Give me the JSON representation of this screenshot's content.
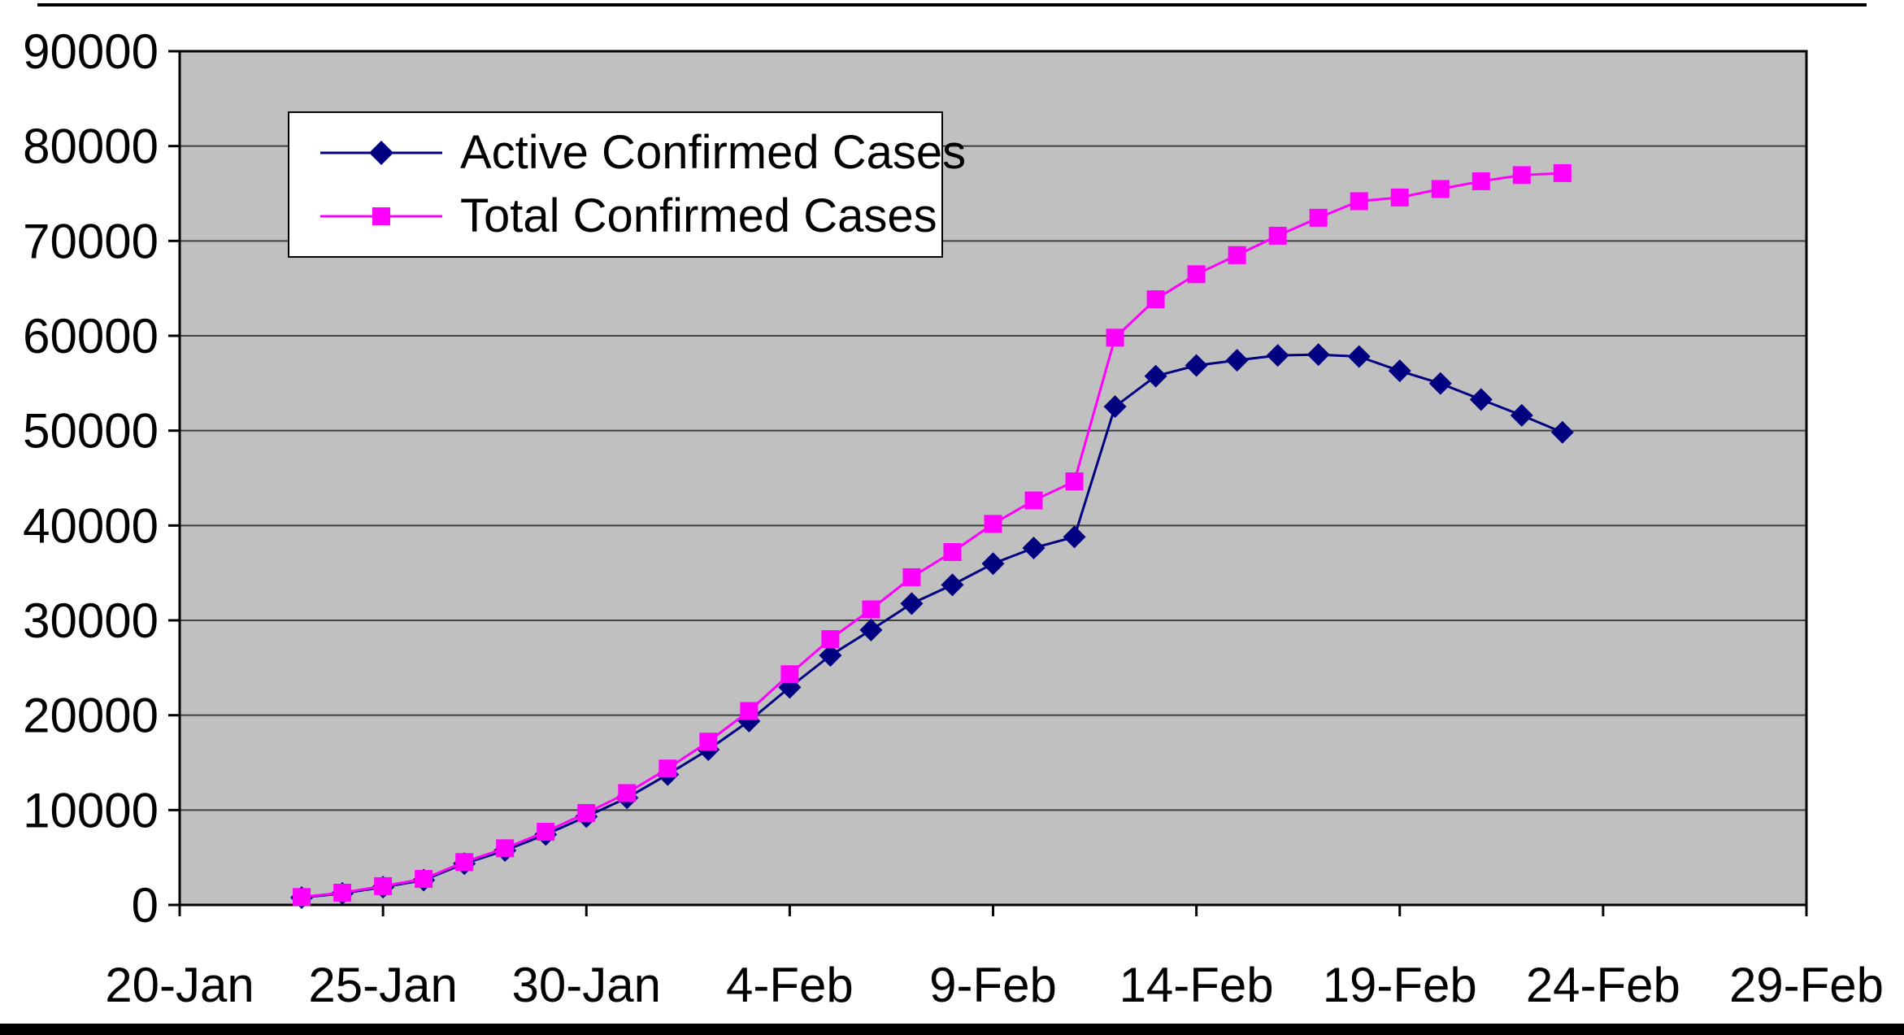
{
  "page": {
    "background": "#ffffff"
  },
  "chart_data": {
    "type": "line",
    "title": "",
    "plot_background": "#c0c0c0",
    "grid": "horizontal",
    "legend_position": "top-left-inside",
    "x_axis": {
      "tick_labels": [
        "20-Jan",
        "25-Jan",
        "30-Jan",
        "4-Feb",
        "9-Feb",
        "14-Feb",
        "19-Feb",
        "24-Feb",
        "29-Feb"
      ],
      "tick_days": [
        0,
        5,
        10,
        15,
        20,
        25,
        30,
        35,
        40
      ],
      "range_days": [
        0,
        40
      ]
    },
    "y_axis": {
      "min": 0,
      "max": 90000,
      "step": 10000,
      "tick_labels": [
        "0",
        "10000",
        "20000",
        "30000",
        "40000",
        "50000",
        "60000",
        "70000",
        "80000",
        "90000"
      ]
    },
    "dates": [
      "23-Jan",
      "24-Jan",
      "25-Jan",
      "26-Jan",
      "27-Jan",
      "28-Jan",
      "29-Jan",
      "30-Jan",
      "31-Jan",
      "1-Feb",
      "2-Feb",
      "3-Feb",
      "4-Feb",
      "5-Feb",
      "6-Feb",
      "7-Feb",
      "8-Feb",
      "9-Feb",
      "10-Feb",
      "11-Feb",
      "12-Feb",
      "13-Feb",
      "14-Feb",
      "15-Feb",
      "16-Feb",
      "17-Feb",
      "18-Feb",
      "19-Feb",
      "20-Feb",
      "21-Feb",
      "22-Feb",
      "23-Feb"
    ],
    "day_offsets": [
      3,
      4,
      5,
      6,
      7,
      8,
      9,
      10,
      11,
      12,
      13,
      14,
      15,
      16,
      17,
      18,
      19,
      20,
      21,
      22,
      23,
      24,
      25,
      26,
      27,
      28,
      29,
      30,
      31,
      32,
      33,
      34
    ],
    "series": [
      {
        "name": "Active Confirmed Cases",
        "color": "#000080",
        "marker": "diamond",
        "values": [
          770,
          1210,
          1870,
          2610,
          4350,
          5740,
          7420,
          9310,
          11290,
          13750,
          16370,
          19380,
          22940,
          26300,
          28980,
          31770,
          33740,
          35980,
          37630,
          38800,
          52530,
          55750,
          56870,
          57420,
          57930,
          58020,
          57810,
          56300,
          54970,
          53280,
          51610,
          49820
        ]
      },
      {
        "name": "Total Confirmed Cases",
        "color": "#ff00ff",
        "marker": "square",
        "values": [
          830,
          1290,
          1980,
          2740,
          4520,
          5970,
          7710,
          9690,
          11790,
          14380,
          17210,
          20440,
          24320,
          28020,
          31160,
          34550,
          37200,
          40170,
          42640,
          44650,
          59800,
          63850,
          66490,
          68500,
          70550,
          72440,
          74190,
          74580,
          75470,
          76290,
          76940,
          77150
        ]
      }
    ]
  }
}
